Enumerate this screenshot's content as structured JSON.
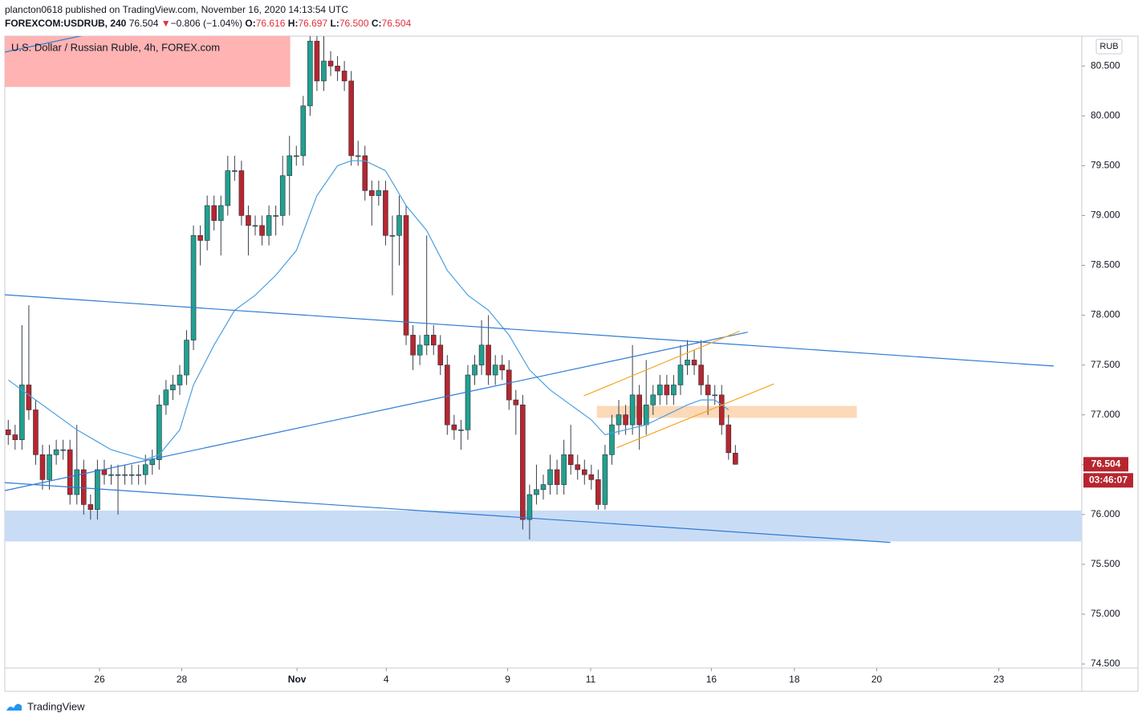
{
  "header": {
    "published": "plancton0618 published on TradingView.com, November 16, 2020 14:13:54 UTC",
    "symbol": "FOREXCOM:USDRUB, 240",
    "last": "76.504",
    "arrow": "▼",
    "change": "−0.806 (−1.04%)",
    "o_label": "O:",
    "o": "76.616",
    "h_label": "H:",
    "h": "76.697",
    "l_label": "L:",
    "l": "76.500",
    "c_label": "C:",
    "c": "76.504"
  },
  "chart_data": {
    "type": "candlestick",
    "legend_title": "U.S. Dollar / Russian Ruble, 4h, FOREX.com",
    "currency": "RUB",
    "last_price_label": "76.504",
    "countdown": "03:46:07",
    "up_color": "#22a08f",
    "down_color": "#b7262f",
    "open": [
      76.85,
      76.8,
      76.75,
      77.3,
      77.05,
      76.6,
      76.35,
      76.6,
      76.65,
      76.65,
      76.2,
      76.45,
      76.1,
      76.05,
      76.45,
      76.4,
      76.4,
      76.4,
      76.4,
      76.4,
      76.4,
      76.5,
      76.55,
      77.1,
      77.25,
      77.3,
      77.4,
      77.75,
      78.8,
      78.75,
      79.1,
      78.95,
      79.1,
      79.45,
      79.45,
      79.0,
      78.9,
      78.9,
      78.8,
      79.0,
      79.0,
      79.4,
      79.6,
      79.6,
      80.1,
      80.75,
      80.35,
      80.55,
      80.5,
      80.45,
      80.35,
      79.6,
      79.6,
      79.25,
      79.2,
      79.25,
      78.8,
      78.8,
      79.0,
      77.8,
      77.6,
      77.7,
      77.8,
      77.7,
      77.5,
      76.9,
      76.85,
      76.85,
      77.4,
      77.5,
      77.7,
      77.4,
      77.5,
      77.45,
      77.15,
      77.1,
      75.95,
      76.2,
      76.25,
      76.3,
      76.45,
      76.3,
      76.6,
      76.5,
      76.45,
      76.4,
      76.35,
      76.1,
      76.6,
      76.9,
      77.0,
      76.9,
      77.2,
      76.9,
      77.1,
      77.2,
      77.3,
      77.2,
      77.3,
      77.5,
      77.55,
      77.5,
      77.3,
      77.2,
      77.2,
      76.9,
      76.616
    ],
    "high": [
      76.95,
      76.9,
      77.9,
      78.1,
      77.15,
      76.7,
      76.7,
      76.75,
      76.75,
      76.75,
      76.9,
      76.55,
      76.2,
      76.55,
      76.55,
      76.5,
      76.5,
      76.5,
      76.5,
      76.5,
      76.6,
      76.65,
      77.2,
      77.35,
      77.4,
      77.5,
      77.85,
      78.9,
      78.9,
      79.2,
      79.2,
      79.2,
      79.6,
      79.6,
      79.55,
      79.1,
      79.0,
      79.0,
      79.1,
      79.1,
      79.6,
      79.8,
      79.7,
      80.2,
      80.8,
      80.8,
      80.8,
      80.65,
      80.6,
      80.55,
      80.45,
      79.75,
      79.7,
      79.35,
      79.35,
      79.35,
      79.0,
      79.2,
      79.1,
      77.9,
      77.8,
      78.8,
      77.9,
      77.8,
      77.6,
      77.0,
      76.95,
      77.5,
      77.6,
      77.95,
      78.0,
      77.6,
      77.6,
      77.55,
      77.25,
      77.2,
      76.3,
      76.5,
      76.4,
      76.6,
      76.55,
      76.75,
      76.9,
      76.6,
      76.55,
      76.5,
      76.45,
      76.7,
      77.0,
      77.15,
      77.1,
      77.7,
      77.3,
      77.55,
      77.3,
      77.4,
      77.4,
      77.4,
      77.7,
      77.75,
      77.65,
      77.75,
      77.4,
      77.3,
      77.3,
      77.0,
      76.697
    ],
    "low": [
      76.7,
      76.65,
      76.65,
      76.95,
      76.5,
      76.25,
      76.25,
      76.5,
      76.55,
      76.1,
      76.1,
      76.0,
      75.95,
      75.95,
      76.3,
      76.3,
      76.0,
      76.3,
      76.3,
      76.3,
      76.3,
      76.4,
      76.45,
      77.0,
      77.15,
      77.2,
      77.3,
      77.65,
      78.5,
      78.65,
      78.85,
      78.6,
      79.0,
      79.35,
      78.9,
      78.6,
      78.8,
      78.7,
      78.7,
      78.8,
      78.9,
      79.0,
      79.5,
      79.5,
      80.0,
      80.25,
      80.25,
      80.4,
      80.35,
      80.25,
      79.5,
      79.5,
      79.15,
      78.9,
      79.1,
      78.7,
      78.2,
      78.5,
      77.7,
      77.45,
      77.5,
      77.6,
      77.6,
      77.4,
      76.8,
      76.75,
      76.65,
      76.75,
      77.3,
      77.4,
      77.3,
      77.3,
      77.35,
      77.05,
      76.8,
      75.85,
      75.75,
      76.1,
      76.15,
      76.2,
      76.2,
      76.2,
      76.4,
      76.35,
      76.3,
      76.25,
      76.05,
      76.05,
      76.5,
      76.8,
      76.8,
      76.8,
      76.65,
      76.8,
      77.0,
      77.1,
      77.1,
      77.1,
      77.2,
      77.4,
      77.4,
      77.2,
      77.0,
      77.1,
      76.8,
      76.55,
      76.5
    ],
    "close": [
      76.8,
      76.75,
      77.3,
      77.05,
      76.6,
      76.35,
      76.6,
      76.65,
      76.65,
      76.2,
      76.45,
      76.1,
      76.05,
      76.45,
      76.4,
      76.4,
      76.4,
      76.4,
      76.4,
      76.4,
      76.5,
      76.55,
      77.1,
      77.25,
      77.3,
      77.4,
      77.75,
      78.8,
      78.75,
      79.1,
      78.95,
      79.1,
      79.45,
      79.45,
      79.0,
      78.9,
      78.9,
      78.8,
      79.0,
      79.0,
      79.4,
      79.6,
      79.6,
      80.1,
      80.75,
      80.35,
      80.55,
      80.5,
      80.45,
      80.35,
      79.6,
      79.6,
      79.25,
      79.2,
      79.25,
      78.8,
      78.8,
      79.0,
      77.8,
      77.6,
      77.7,
      77.8,
      77.7,
      77.5,
      76.9,
      76.85,
      76.85,
      77.4,
      77.5,
      77.7,
      77.4,
      77.5,
      77.45,
      77.15,
      77.1,
      75.95,
      76.2,
      76.25,
      76.3,
      76.45,
      76.3,
      76.6,
      76.5,
      76.45,
      76.4,
      76.35,
      76.1,
      76.6,
      76.9,
      77.0,
      76.9,
      77.2,
      76.9,
      77.1,
      77.2,
      77.3,
      77.2,
      77.3,
      77.5,
      77.55,
      77.5,
      77.3,
      77.2,
      77.2,
      76.9,
      76.62,
      76.504
    ],
    "ma": {
      "color": "#4a9fe0",
      "x": [
        0,
        10,
        15,
        20,
        22,
        25,
        27,
        30,
        33,
        36,
        39,
        42,
        45,
        48,
        50,
        52,
        55,
        58,
        61,
        64,
        67,
        70,
        73,
        76,
        79,
        82,
        85,
        87,
        90,
        93,
        96,
        99,
        101,
        103,
        105
      ],
      "values": [
        77.35,
        76.85,
        76.65,
        76.55,
        76.6,
        76.85,
        77.3,
        77.7,
        78.05,
        78.2,
        78.4,
        78.65,
        79.2,
        79.5,
        79.55,
        79.55,
        79.45,
        79.1,
        78.85,
        78.45,
        78.2,
        78.05,
        77.8,
        77.45,
        77.25,
        77.1,
        76.95,
        76.8,
        76.85,
        76.9,
        77.0,
        77.1,
        77.15,
        77.15,
        77.05
      ]
    },
    "lines": [
      {
        "color": "#2f7bd4",
        "x": [
          -0.5,
          152.4
        ],
        "y": [
          78.205,
          77.49
        ]
      },
      {
        "color": "#2f7bd4",
        "x": [
          -0.5,
          128.6
        ],
        "y": [
          76.32,
          75.72
        ]
      },
      {
        "color": "#2f7bd4",
        "x": [
          -0.5,
          107.8
        ],
        "y": [
          76.24,
          77.83
        ]
      },
      {
        "color": "#2f7bd4",
        "x": [
          -0.5,
          11.1
        ],
        "y": [
          80.64,
          80.81
        ]
      },
      {
        "color": "#f5a623",
        "x": [
          83.9,
          106.6
        ],
        "y": [
          77.19,
          77.84
        ]
      },
      {
        "color": "#f5a623",
        "x": [
          88.7,
          111.6
        ],
        "y": [
          76.67,
          77.31
        ]
      }
    ],
    "zones": [
      {
        "color": "#ffb3b3",
        "x": [
          -0.5,
          41.1
        ],
        "y": [
          80.29,
          80.8
        ]
      },
      {
        "color": "#c9dcf6",
        "x": [
          -0.5,
          156.5
        ],
        "y": [
          75.73,
          76.04
        ]
      },
      {
        "color": "#fcd9b8",
        "x": [
          85.8,
          123.7
        ],
        "y": [
          76.97,
          77.09
        ]
      }
    ],
    "xlim": [
      -0.5,
      156.5
    ],
    "ylim": [
      74.46,
      80.8
    ],
    "xticks": [
      {
        "value": 13.3,
        "label": "26"
      },
      {
        "value": 25.3,
        "label": "28"
      },
      {
        "value": 42.1,
        "label": "Nov"
      },
      {
        "value": 55.1,
        "label": "4"
      },
      {
        "value": 72.8,
        "label": "9"
      },
      {
        "value": 84.9,
        "label": "11"
      },
      {
        "value": 102.5,
        "label": "16"
      },
      {
        "value": 114.6,
        "label": "18"
      },
      {
        "value": 126.6,
        "label": "20"
      },
      {
        "value": 144.4,
        "label": "23"
      }
    ],
    "yticks": [
      {
        "value": 74.5,
        "label": "74.500"
      },
      {
        "value": 75,
        "label": "75.000"
      },
      {
        "value": 75.5,
        "label": "75.500"
      },
      {
        "value": 76,
        "label": "76.000"
      },
      {
        "value": 76.5,
        "label": "76.500"
      },
      {
        "value": 77,
        "label": "77.000"
      },
      {
        "value": 77.5,
        "label": "77.500"
      },
      {
        "value": 78,
        "label": "78.000"
      },
      {
        "value": 78.5,
        "label": "78.500"
      },
      {
        "value": 79,
        "label": "79.000"
      },
      {
        "value": 79.5,
        "label": "79.500"
      },
      {
        "value": 80,
        "label": "80.000"
      },
      {
        "value": 80.5,
        "label": "80.500"
      }
    ]
  },
  "footer": {
    "brand": "TradingView"
  }
}
